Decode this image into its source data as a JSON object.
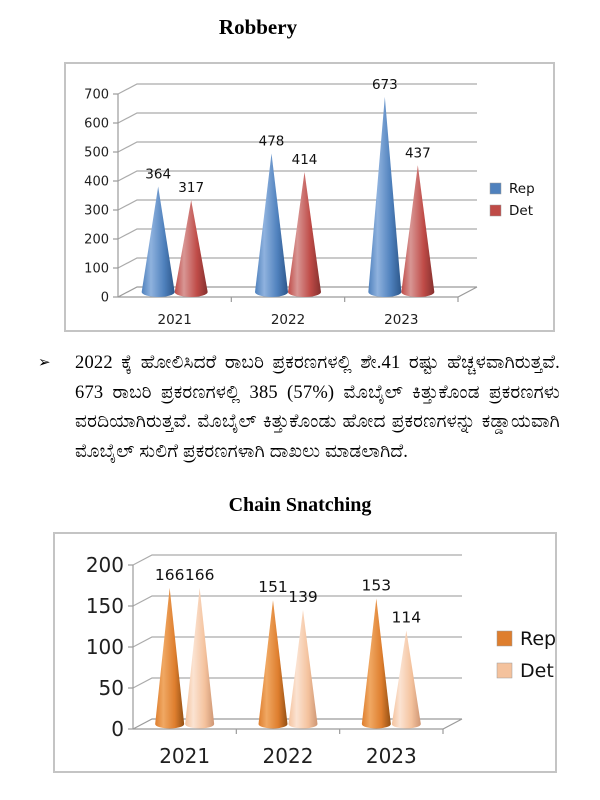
{
  "titles": {
    "chart1": "Robbery",
    "chart2": "Chain Snatching"
  },
  "paragraph": {
    "bullet": "➢",
    "text": "2022 ಕ್ಕೆ ಹೋಲಿಸಿದರೆ ರಾಬರಿ ಪ್ರಕರಣಗಳಲ್ಲಿ ಶೇ.41 ರಷ್ಟು ಹೆಚ್ಚಳವಾಗಿರುತ್ತವೆ. 673 ರಾಬರಿ ಪ್ರಕರಣಗಳಲ್ಲಿ 385 (57%) ಮೊಬೈಲ್ ಕಿತ್ತುಕೊಂಡ ಪ್ರಕರಣಗಳು ವರದಿಯಾಗಿರುತ್ತವೆ. ಮೊಬೈಲ್ ಕಿತ್ತುಕೊಂಡು ಹೋದ ಪ್ರಕರಣಗಳನ್ನು ಕಡ್ಡಾಯವಾಗಿ ಮೊಬೈಲ್ ಸುಲಿಗೆ ಪ್ರಕರಣಗಳಾಗಿ ದಾಖಲು ಮಾಡಲಾಗಿದೆ."
  },
  "chart_data": [
    {
      "type": "bar",
      "subtype": "3d-cone",
      "title": "Robbery",
      "categories": [
        "2021",
        "2022",
        "2023"
      ],
      "series": [
        {
          "name": "Rep",
          "values": [
            364,
            478,
            673
          ],
          "color": "#4F81BD",
          "color_light": "#8FB2DE",
          "color_dark": "#2C568A"
        },
        {
          "name": "Det",
          "values": [
            317,
            414,
            437
          ],
          "color": "#BF4B47",
          "color_light": "#D89694",
          "color_dark": "#84302E"
        }
      ],
      "ylim": [
        0,
        700
      ],
      "ytick_step": 100,
      "xlabel": "",
      "ylabel": "",
      "legend_position": "right",
      "grid": true
    },
    {
      "type": "bar",
      "subtype": "3d-cone",
      "title": "Chain Snatching",
      "categories": [
        "2021",
        "2022",
        "2023"
      ],
      "series": [
        {
          "name": "Rep",
          "values": [
            166,
            151,
            153
          ],
          "color": "#DE7E2E",
          "color_light": "#F0A863",
          "color_dark": "#934F13"
        },
        {
          "name": "Det",
          "values": [
            166,
            139,
            114
          ],
          "color": "#F4C29D",
          "color_light": "#FBE3D2",
          "color_dark": "#CE9674"
        }
      ],
      "ylim": [
        0,
        200
      ],
      "ytick_step": 50,
      "xlabel": "",
      "ylabel": "",
      "legend_position": "right",
      "grid": true
    }
  ]
}
